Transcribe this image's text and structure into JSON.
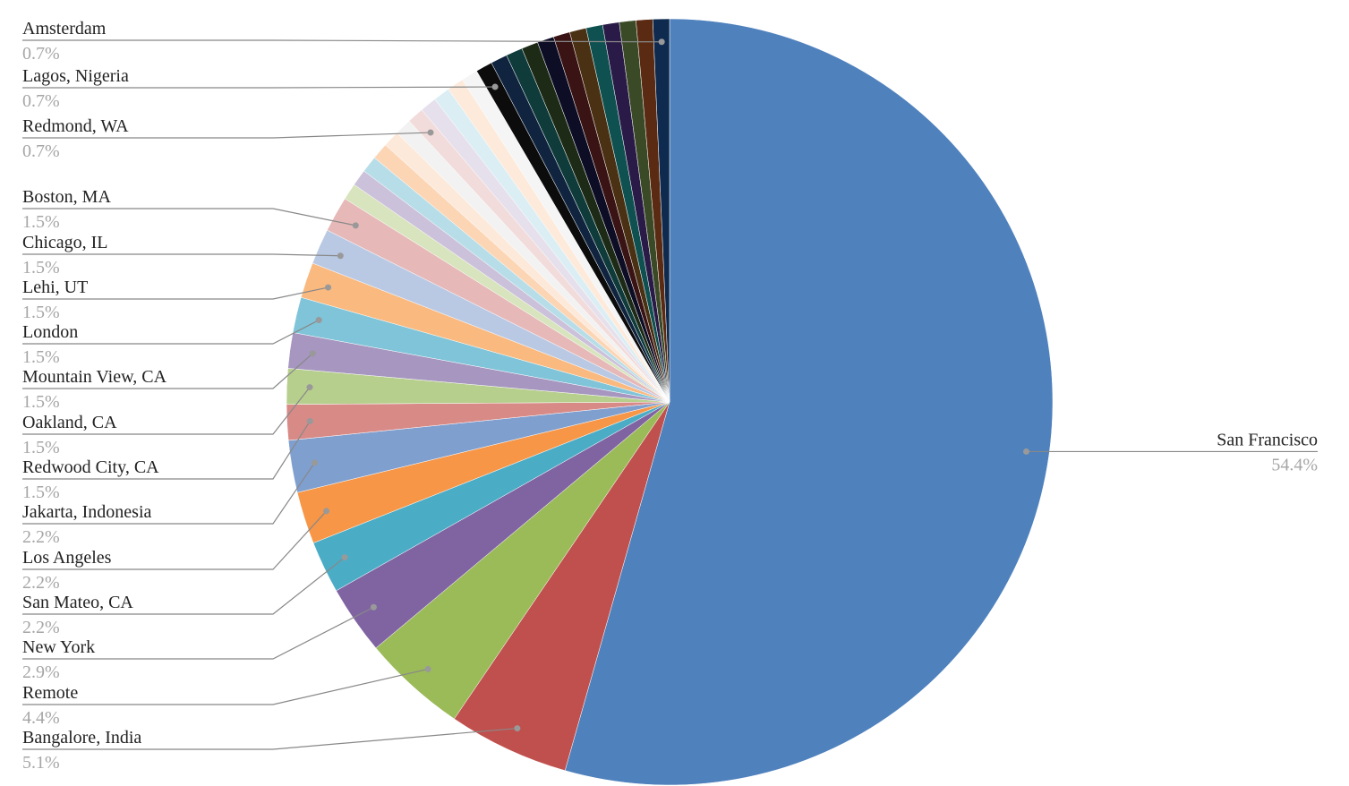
{
  "chart_data": {
    "type": "pie",
    "categories": [
      "San Francisco",
      "Bangalore, India",
      "Remote",
      "New York",
      "San Mateo, CA",
      "Los Angeles",
      "Jakarta, Indonesia",
      "Redwood City, CA",
      "Oakland, CA",
      "Mountain View, CA",
      "London",
      "Lehi, UT",
      "Chicago, IL",
      "Boston, MA",
      null,
      null,
      null,
      null,
      null,
      null,
      "Redmond, WA",
      null,
      null,
      null,
      null,
      "Lagos, Nigeria",
      null,
      null,
      null,
      null,
      null,
      null,
      null,
      null,
      null,
      null,
      "Amsterdam"
    ],
    "values": [
      54.4,
      5.1,
      4.4,
      2.9,
      2.2,
      2.2,
      2.2,
      1.5,
      1.5,
      1.5,
      1.5,
      1.5,
      1.5,
      1.5,
      0.7,
      0.7,
      0.7,
      0.7,
      0.7,
      0.7,
      0.7,
      0.7,
      0.7,
      0.7,
      0.7,
      0.7,
      0.7,
      0.7,
      0.7,
      0.7,
      0.7,
      0.7,
      0.7,
      0.7,
      0.7,
      0.7,
      0.7
    ],
    "value_labels": [
      "54.4%",
      "5.1%",
      "4.4%",
      "2.9%",
      "2.2%",
      "2.2%",
      "2.2%",
      "1.5%",
      "1.5%",
      "1.5%",
      "1.5%",
      "1.5%",
      "1.5%",
      "1.5%",
      null,
      null,
      null,
      null,
      null,
      null,
      "0.7%",
      null,
      null,
      null,
      null,
      "0.7%",
      null,
      null,
      null,
      null,
      null,
      null,
      null,
      null,
      null,
      null,
      "0.7%"
    ],
    "colors": [
      "#4f81bd",
      "#c0504d",
      "#9bbb59",
      "#8064a2",
      "#4bacc6",
      "#f79646",
      "#7f9fcf",
      "#d88a87",
      "#b7cf8d",
      "#a696c0",
      "#7fc4d8",
      "#f9b97f",
      "#b9c9e4",
      "#e6b9b8",
      "#d7e4bd",
      "#ccc1da",
      "#b7dee8",
      "#fcd5b5",
      "#fde9d9",
      "#f2f2f2",
      "#f2dcdb",
      "#e6e0ec",
      "#dbeef4",
      "#fdeada",
      "#f5f5f5",
      "#0c0c0c",
      "#10243f",
      "#0f3b3b",
      "#1d2b16",
      "#0d0d26",
      "#3a1414",
      "#4a3114",
      "#0f5151",
      "#2a1a47",
      "#3b4a26",
      "#5a2b12",
      "#0f2a4f"
    ]
  }
}
